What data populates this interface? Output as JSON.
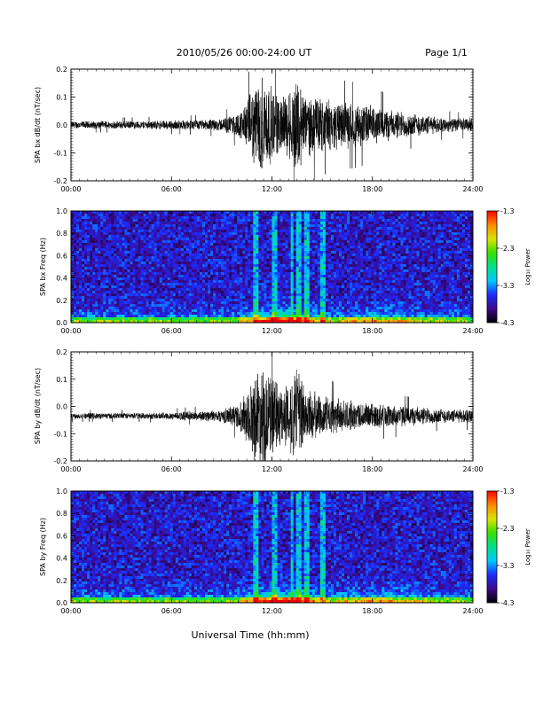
{
  "header": {
    "title": "2010/05/26  00:00-24:00 UT",
    "page": "Page 1/1"
  },
  "footer": {
    "xlabel": "Universal Time (hh:mm)"
  },
  "colorbar": {
    "title": "Log₁₀ Power",
    "ticks": [
      "-1.3",
      "-2.3",
      "-3.3",
      "-4.3"
    ],
    "colors": [
      "#000000",
      "#3a0a8c",
      "#1b2cff",
      "#00c8ff",
      "#00e08a",
      "#38e000",
      "#d8e400",
      "#ff8a00",
      "#ff0000"
    ]
  },
  "chart_data": [
    {
      "type": "line",
      "ylabel": "SPA bx dB/dt (nT/sec)",
      "xlim": [
        0,
        24
      ],
      "ylim": [
        -0.2,
        0.2
      ],
      "x_ticks": [
        "00:00",
        "06:00",
        "12:00",
        "18:00",
        "24:00"
      ],
      "y_ticks": [
        "0.2",
        "0.1",
        "0.0",
        "-0.1",
        "-0.2"
      ],
      "x": [
        0,
        2,
        4,
        6,
        8,
        9,
        10,
        10.5,
        11,
        11.5,
        12,
        12.5,
        13,
        13.5,
        14,
        15,
        16,
        17,
        18,
        19,
        20,
        21,
        22,
        23,
        24
      ],
      "amplitude": [
        0.015,
        0.015,
        0.015,
        0.018,
        0.02,
        0.025,
        0.045,
        0.09,
        0.16,
        0.2,
        0.14,
        0.11,
        0.13,
        0.2,
        0.12,
        0.1,
        0.09,
        0.085,
        0.075,
        0.06,
        0.05,
        0.04,
        0.03,
        0.025,
        0.03
      ],
      "offset": 0.0
    },
    {
      "type": "heatmap",
      "ylabel": "SPA bx Freq (Hz)",
      "xlim": [
        0,
        24
      ],
      "ylim": [
        0.0,
        1.0
      ],
      "x_ticks": [
        "00:00",
        "06:00",
        "12:00",
        "18:00",
        "24:00"
      ],
      "y_ticks": [
        "1.0",
        "0.8",
        "0.6",
        "0.4",
        "0.2",
        "0.0"
      ],
      "zlim": [
        -4.3,
        -1.3
      ],
      "zlabel": "Log₁₀ Power"
    },
    {
      "type": "line",
      "ylabel": "SPA by dB/dt (nT/sec)",
      "xlim": [
        0,
        24
      ],
      "ylim": [
        -0.2,
        0.2
      ],
      "x_ticks": [
        "00:00",
        "06:00",
        "12:00",
        "18:00",
        "24:00"
      ],
      "y_ticks": [
        "0.2",
        "0.1",
        "0.0",
        "-0.1",
        "-0.2"
      ],
      "x": [
        0,
        2,
        4,
        6,
        8,
        9,
        10,
        10.5,
        11,
        11.5,
        12,
        12.5,
        13,
        13.5,
        14,
        15,
        16,
        17,
        18,
        19,
        20,
        21,
        22,
        23,
        24
      ],
      "amplitude": [
        0.012,
        0.012,
        0.012,
        0.015,
        0.02,
        0.025,
        0.05,
        0.1,
        0.18,
        0.2,
        0.16,
        0.12,
        0.13,
        0.2,
        0.11,
        0.08,
        0.065,
        0.055,
        0.05,
        0.045,
        0.04,
        0.035,
        0.03,
        0.025,
        0.03
      ],
      "offset": -0.035
    },
    {
      "type": "heatmap",
      "ylabel": "SPA by Freq (Hz)",
      "xlim": [
        0,
        24
      ],
      "ylim": [
        0.0,
        1.0
      ],
      "x_ticks": [
        "00:00",
        "06:00",
        "12:00",
        "18:00",
        "24:00"
      ],
      "y_ticks": [
        "1.0",
        "0.8",
        "0.6",
        "0.4",
        "0.2",
        "0.0"
      ],
      "zlim": [
        -4.3,
        -1.3
      ],
      "zlabel": "Log₁₀ Power"
    }
  ]
}
